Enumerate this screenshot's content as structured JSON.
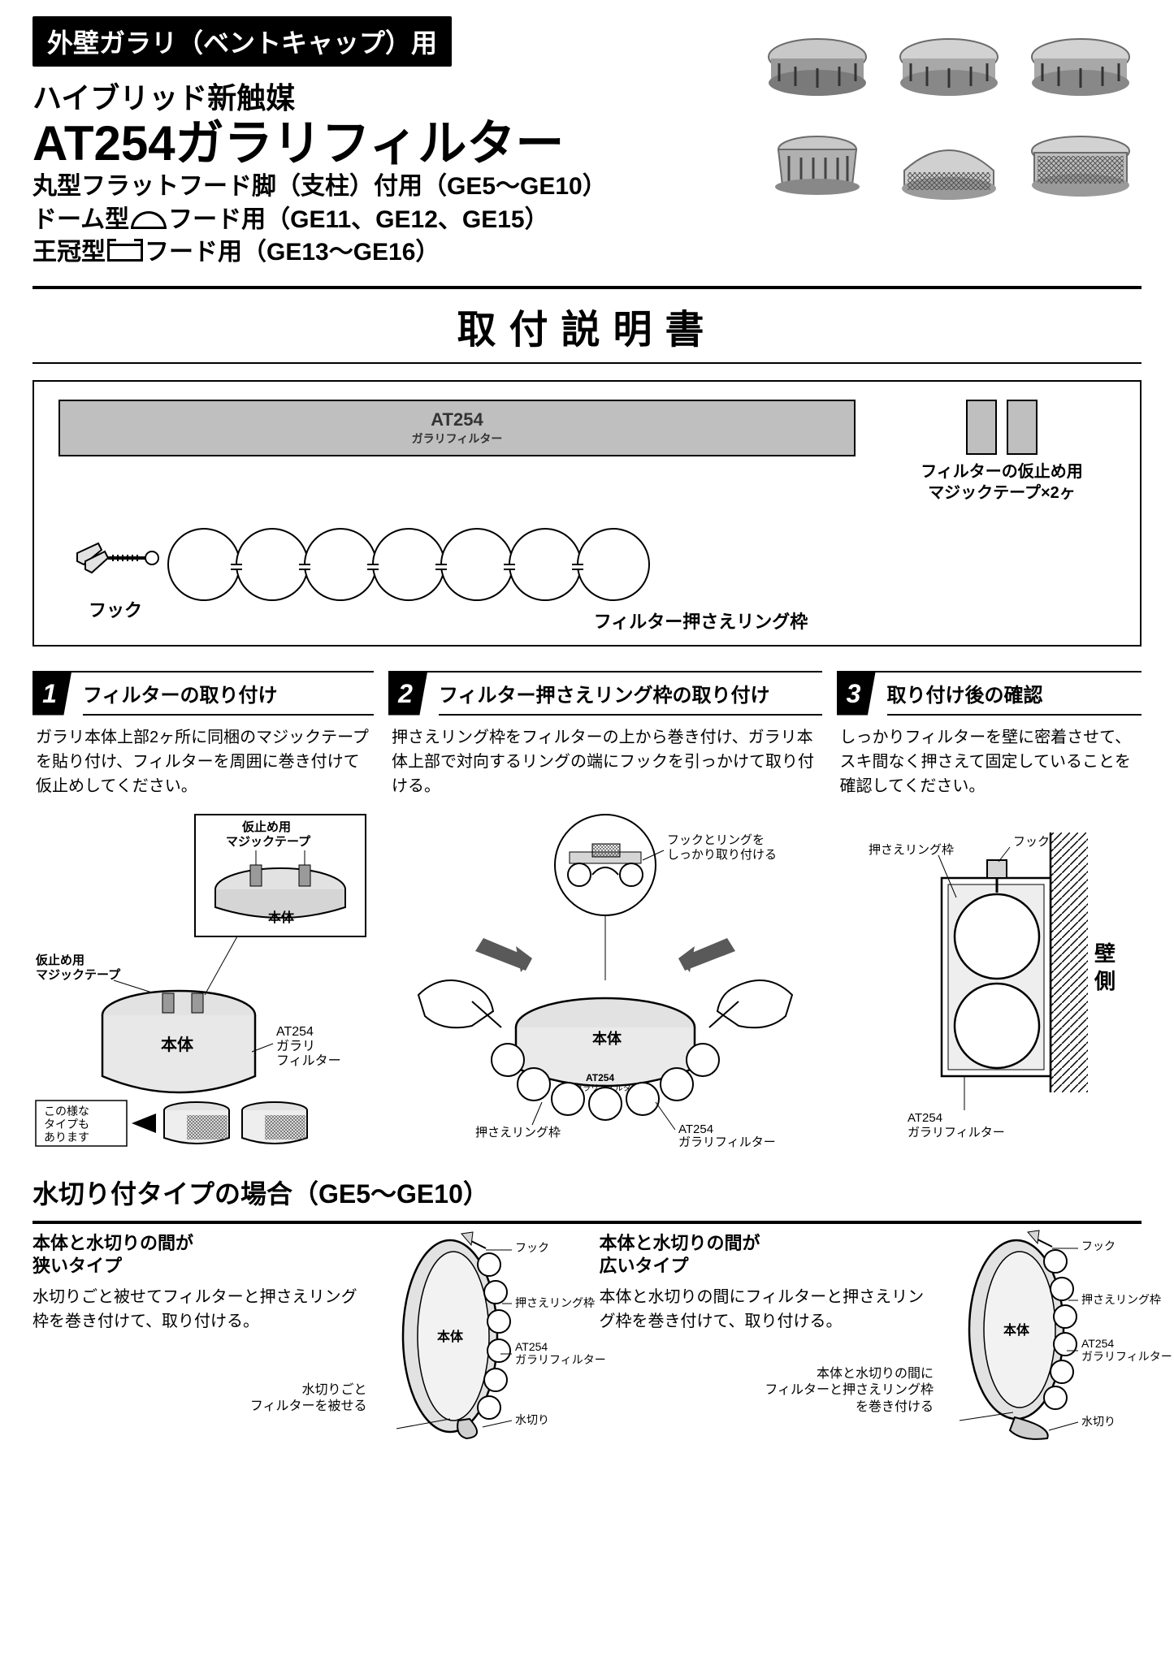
{
  "colors": {
    "black": "#000000",
    "white": "#ffffff",
    "grey_fill": "#bfbfbf",
    "grey_light": "#e2e2e2",
    "grey_mid": "#9a9a9a",
    "grey_dark": "#6b6b6b"
  },
  "header": {
    "badge": "外壁ガラリ（ベントキャップ）用",
    "subtitle": "ハイブリッド新触媒",
    "product_name": "AT254ガラリフィルター",
    "spec_1": "丸型フラットフード脚（支柱）付用（GE5〜GE10）",
    "spec_2_pre": "ドーム型",
    "spec_2_post": "フード用（GE11、GE12、GE15）",
    "spec_3_pre": "王冠型",
    "spec_3_post": "フード用（GE13〜GE16）"
  },
  "page_title": "取付説明書",
  "parts": {
    "filter_a": "AT254",
    "filter_b": "ガラリフィルター",
    "velcro_1": "フィルターの仮止め用",
    "velcro_2": "マジックテープ×2ヶ",
    "hook": "フック",
    "ring_frame": "フィルター押さえリング枠",
    "ring_count": 7
  },
  "steps": [
    {
      "num": "1",
      "title": "フィルターの取り付け",
      "body": "ガラリ本体上部2ヶ所に同梱のマジックテープを貼り付け、フィルターを周囲に巻き付けて仮止めしてください。",
      "labels": {
        "velcro_top": "仮止め用\nマジックテープ",
        "body_label": "本体",
        "velcro_side": "仮止め用\nマジックテープ",
        "filter_label": "AT254\nガラリ\nフィルター",
        "alt_note": "この様な\nタイプも\nあります"
      }
    },
    {
      "num": "2",
      "title": "フィルター押さえリング枠の取り付け",
      "body": "押さえリング枠をフィルターの上から巻き付け、ガラリ本体上部で対向するリングの端にフックを引っかけて取り付ける。",
      "labels": {
        "hook_note": "フックとリングを\nしっかり取り付ける",
        "body_label": "本体",
        "filter_a": "AT254",
        "filter_b": "ガラリフィルター",
        "ring_label_l": "押さえリング枠",
        "ring_label_r": "AT254\nガラリフィルター"
      }
    },
    {
      "num": "3",
      "title": "取り付け後の確認",
      "body": "しっかりフィルターを壁に密着させて、スキ間なく押さえて固定していることを確認してください。",
      "labels": {
        "ring": "押さえリング枠",
        "hook": "フック",
        "wall": "壁\n側",
        "filter": "AT254\nガラリフィルター"
      }
    }
  ],
  "drain": {
    "section_title": "水切り付タイプの場合（GE5〜GE10）",
    "narrow": {
      "heading": "本体と水切りの間が\n狭いタイプ",
      "body": "水切りごと被せてフィルターと押さえリング枠を巻き付けて、取り付ける。",
      "note": "水切りごと\nフィルターを被せる"
    },
    "wide": {
      "heading": "本体と水切りの間が\n広いタイプ",
      "body": "本体と水切りの間にフィルターと押さえリング枠を巻き付けて、取り付ける。",
      "note": "本体と水切りの間に\nフィルターと押さえリング枠\nを巻き付ける"
    },
    "callouts": {
      "hook": "フック",
      "ring": "押さえリング枠",
      "filter": "AT254\nガラリフィルター",
      "drain": "水切り",
      "body": "本体"
    }
  }
}
